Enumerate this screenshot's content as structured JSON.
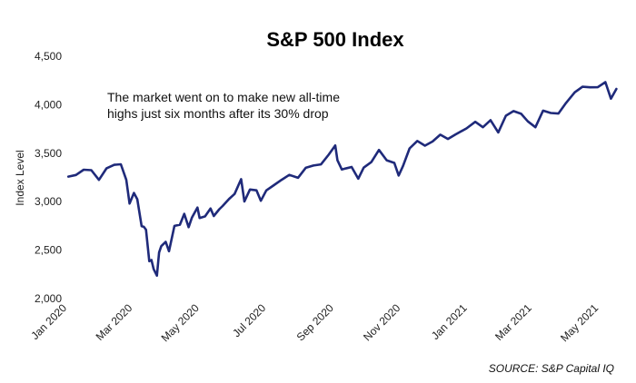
{
  "chart_data": {
    "type": "line",
    "title": "S&P 500 Index",
    "ylabel": "Index Level",
    "xlabel": "",
    "ylim": [
      2000,
      4500
    ],
    "yticks": [
      2000,
      2500,
      3000,
      3500,
      4000,
      4500
    ],
    "ytick_labels": [
      "2,000",
      "2,500",
      "3,000",
      "3,500",
      "4,000",
      "4,500"
    ],
    "xlim": [
      "2020-01-01",
      "2021-05-20"
    ],
    "xticks": [
      "2020-01-01",
      "2020-03-01",
      "2020-05-01",
      "2020-07-01",
      "2020-09-01",
      "2020-11-01",
      "2021-01-01",
      "2021-03-01",
      "2021-05-01"
    ],
    "xtick_labels": [
      "Jan 2020",
      "Mar 2020",
      "May 2020",
      "Jul 2020",
      "Sep 2020",
      "Nov 2020",
      "Jan 2021",
      "Mar 2021",
      "May 2021"
    ],
    "grid": false,
    "line_color": "#1f2a7a",
    "annotation": "The market went on to make new all-time highs just six months after its 30% drop",
    "annotation_lines": [
      "The market went on to make new all-time",
      "highs just six months after its 30% drop"
    ],
    "source": "SOURCE: S&P Capital IQ",
    "series": [
      {
        "x": [
          "2020-01-02",
          "2020-01-09",
          "2020-01-16",
          "2020-01-23",
          "2020-01-30",
          "2020-02-06",
          "2020-02-13",
          "2020-02-19",
          "2020-02-24",
          "2020-02-27",
          "2020-03-02",
          "2020-03-05",
          "2020-03-09",
          "2020-03-11",
          "2020-03-13",
          "2020-03-16",
          "2020-03-18",
          "2020-03-20",
          "2020-03-23",
          "2020-03-25",
          "2020-03-27",
          "2020-03-31",
          "2020-04-03",
          "2020-04-08",
          "2020-04-13",
          "2020-04-17",
          "2020-04-21",
          "2020-04-24",
          "2020-04-29",
          "2020-05-01",
          "2020-05-06",
          "2020-05-11",
          "2020-05-14",
          "2020-05-19",
          "2020-05-22",
          "2020-05-28",
          "2020-06-02",
          "2020-06-08",
          "2020-06-11",
          "2020-06-16",
          "2020-06-22",
          "2020-06-26",
          "2020-07-01",
          "2020-07-08",
          "2020-07-15",
          "2020-07-22",
          "2020-07-30",
          "2020-08-06",
          "2020-08-13",
          "2020-08-20",
          "2020-08-27",
          "2020-09-02",
          "2020-09-04",
          "2020-09-08",
          "2020-09-11",
          "2020-09-17",
          "2020-09-23",
          "2020-09-28",
          "2020-10-05",
          "2020-10-12",
          "2020-10-19",
          "2020-10-26",
          "2020-10-30",
          "2020-11-03",
          "2020-11-09",
          "2020-11-16",
          "2020-11-23",
          "2020-11-30",
          "2020-12-07",
          "2020-12-14",
          "2020-12-21",
          "2020-12-31",
          "2021-01-08",
          "2021-01-15",
          "2021-01-22",
          "2021-01-29",
          "2021-02-05",
          "2021-02-12",
          "2021-02-19",
          "2021-02-25",
          "2021-03-04",
          "2021-03-11",
          "2021-03-18",
          "2021-03-25",
          "2021-04-01",
          "2021-04-09",
          "2021-04-16",
          "2021-04-23",
          "2021-04-30",
          "2021-05-07",
          "2021-05-12",
          "2021-05-17"
        ],
        "y": [
          3258,
          3275,
          3330,
          3325,
          3225,
          3345,
          3380,
          3386,
          3225,
          2980,
          3090,
          3025,
          2746,
          2741,
          2711,
          2386,
          2398,
          2305,
          2237,
          2476,
          2541,
          2585,
          2489,
          2750,
          2762,
          2875,
          2737,
          2837,
          2939,
          2831,
          2848,
          2930,
          2852,
          2922,
          2955,
          3029,
          3080,
          3232,
          3002,
          3125,
          3117,
          3009,
          3116,
          3170,
          3226,
          3276,
          3246,
          3349,
          3373,
          3385,
          3484,
          3580,
          3427,
          3332,
          3341,
          3358,
          3237,
          3351,
          3408,
          3534,
          3427,
          3400,
          3270,
          3369,
          3550,
          3626,
          3578,
          3621,
          3691,
          3647,
          3694,
          3756,
          3824,
          3768,
          3841,
          3714,
          3887,
          3934,
          3906,
          3829,
          3768,
          3939,
          3915,
          3909,
          4019,
          4128,
          4185,
          4180,
          4181,
          4233,
          4063,
          4163
        ]
      }
    ]
  }
}
